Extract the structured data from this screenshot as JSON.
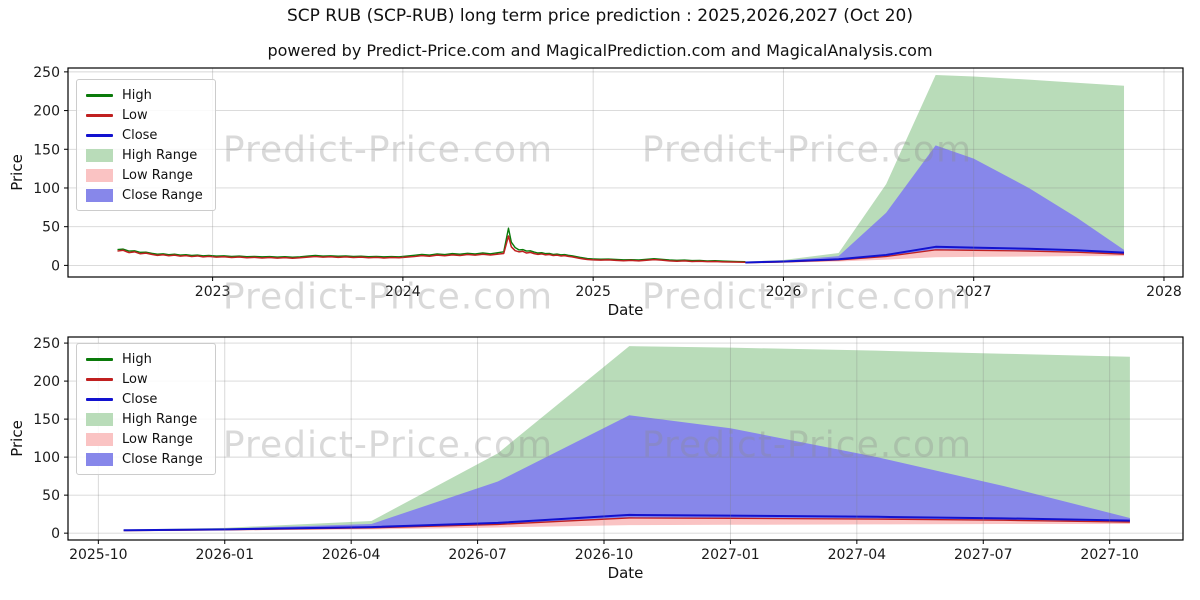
{
  "meta": {
    "title": "SCP RUB (SCP-RUB) long term price prediction : 2025,2026,2027 (Oct 20)",
    "subtitle": "powered by Predict-Price.com and MagicalPrediction.com and MagicalAnalysis.com"
  },
  "watermark": {
    "text": "Predict-Price.com"
  },
  "colors": {
    "high_line": "#0a7a0a",
    "low_line": "#c02020",
    "close_line": "#1212cf",
    "high_range": "#b9dcb9",
    "low_range": "#fac3c3",
    "close_range": "#8787ea",
    "grid": "#808080",
    "spine": "#000000",
    "tick_text": "#1a1a1a"
  },
  "chart_data": [
    {
      "type": "line",
      "xlabel": "Date",
      "ylabel": "Price",
      "x_domain": [
        2022.24,
        2028.1
      ],
      "y_domain": [
        -15,
        255
      ],
      "x_ticks": [
        {
          "v": 2023,
          "label": "2023"
        },
        {
          "v": 2024,
          "label": "2024"
        },
        {
          "v": 2025,
          "label": "2025"
        },
        {
          "v": 2026,
          "label": "2026"
        },
        {
          "v": 2027,
          "label": "2027"
        },
        {
          "v": 2028,
          "label": "2028"
        }
      ],
      "y_ticks": [
        {
          "v": 0,
          "label": "0"
        },
        {
          "v": 50,
          "label": "50"
        },
        {
          "v": 100,
          "label": "100"
        },
        {
          "v": 150,
          "label": "150"
        },
        {
          "v": 200,
          "label": "200"
        },
        {
          "v": 250,
          "label": "250"
        }
      ],
      "legend": [
        {
          "label": "High",
          "swatch": "line",
          "color_key": "high_line"
        },
        {
          "label": "Low",
          "swatch": "line",
          "color_key": "low_line"
        },
        {
          "label": "Close",
          "swatch": "line",
          "color_key": "close_line"
        },
        {
          "label": "High Range",
          "swatch": "patch",
          "color_key": "high_range"
        },
        {
          "label": "Low Range",
          "swatch": "patch",
          "color_key": "low_range"
        },
        {
          "label": "Close Range",
          "swatch": "patch",
          "color_key": "close_range"
        }
      ],
      "history": {
        "note": "triples of [decimal_year, low, high]",
        "points": [
          [
            2022.5,
            18.5,
            20.5
          ],
          [
            2022.53,
            19.5,
            21.0
          ],
          [
            2022.56,
            16.5,
            18.5
          ],
          [
            2022.59,
            17.5,
            18.8
          ],
          [
            2022.62,
            15.0,
            16.8
          ],
          [
            2022.65,
            15.8,
            17.0
          ],
          [
            2022.68,
            14.2,
            15.6
          ],
          [
            2022.71,
            13.0,
            14.5
          ],
          [
            2022.74,
            13.8,
            15.0
          ],
          [
            2022.77,
            12.4,
            13.8
          ],
          [
            2022.8,
            13.2,
            14.4
          ],
          [
            2022.83,
            12.0,
            13.4
          ],
          [
            2022.86,
            12.6,
            13.8
          ],
          [
            2022.89,
            11.4,
            12.8
          ],
          [
            2022.92,
            12.2,
            13.4
          ],
          [
            2022.95,
            11.0,
            12.4
          ],
          [
            2022.98,
            11.6,
            12.8
          ],
          [
            2023.02,
            10.6,
            12.0
          ],
          [
            2023.06,
            11.2,
            12.4
          ],
          [
            2023.1,
            10.2,
            11.6
          ],
          [
            2023.14,
            10.8,
            12.0
          ],
          [
            2023.18,
            9.8,
            11.2
          ],
          [
            2023.22,
            10.4,
            11.6
          ],
          [
            2023.26,
            9.6,
            11.0
          ],
          [
            2023.3,
            10.2,
            11.4
          ],
          [
            2023.34,
            9.4,
            10.8
          ],
          [
            2023.38,
            10.0,
            11.2
          ],
          [
            2023.42,
            9.2,
            10.6
          ],
          [
            2023.46,
            9.8,
            11.0
          ],
          [
            2023.5,
            10.6,
            12.0
          ],
          [
            2023.54,
            11.4,
            12.8
          ],
          [
            2023.58,
            10.6,
            12.0
          ],
          [
            2023.62,
            11.2,
            12.4
          ],
          [
            2023.66,
            10.4,
            11.8
          ],
          [
            2023.7,
            11.0,
            12.2
          ],
          [
            2023.74,
            10.2,
            11.6
          ],
          [
            2023.78,
            10.6,
            11.8
          ],
          [
            2023.82,
            9.8,
            11.2
          ],
          [
            2023.86,
            10.4,
            11.6
          ],
          [
            2023.9,
            9.6,
            11.0
          ],
          [
            2023.94,
            10.2,
            11.4
          ],
          [
            2023.98,
            9.8,
            11.0
          ],
          [
            2024.02,
            10.6,
            12.0
          ],
          [
            2024.06,
            11.4,
            13.0
          ],
          [
            2024.1,
            12.6,
            14.2
          ],
          [
            2024.14,
            11.8,
            13.4
          ],
          [
            2024.18,
            13.2,
            14.8
          ],
          [
            2024.22,
            12.4,
            14.0
          ],
          [
            2024.26,
            13.6,
            15.2
          ],
          [
            2024.3,
            12.8,
            14.4
          ],
          [
            2024.34,
            14.0,
            15.6
          ],
          [
            2024.38,
            13.2,
            14.8
          ],
          [
            2024.42,
            14.4,
            16.0
          ],
          [
            2024.46,
            13.4,
            15.0
          ],
          [
            2024.5,
            14.6,
            16.4
          ],
          [
            2024.53,
            15.4,
            17.5
          ],
          [
            2024.555,
            38.0,
            48.0
          ],
          [
            2024.57,
            24.0,
            30.0
          ],
          [
            2024.59,
            19.0,
            23.0
          ],
          [
            2024.61,
            17.5,
            20.0
          ],
          [
            2024.63,
            18.2,
            20.5
          ],
          [
            2024.65,
            16.0,
            18.5
          ],
          [
            2024.67,
            16.8,
            18.8
          ],
          [
            2024.69,
            15.2,
            17.2
          ],
          [
            2024.71,
            14.2,
            16.0
          ],
          [
            2024.73,
            14.8,
            16.4
          ],
          [
            2024.75,
            13.6,
            15.2
          ],
          [
            2024.77,
            14.0,
            15.4
          ],
          [
            2024.79,
            12.8,
            14.2
          ],
          [
            2024.81,
            13.2,
            14.6
          ],
          [
            2024.83,
            12.2,
            13.6
          ],
          [
            2024.85,
            12.6,
            14.0
          ],
          [
            2024.87,
            11.6,
            13.0
          ],
          [
            2024.89,
            11.0,
            12.4
          ],
          [
            2024.91,
            10.0,
            11.4
          ],
          [
            2024.93,
            9.0,
            10.4
          ],
          [
            2024.95,
            8.2,
            9.6
          ],
          [
            2024.97,
            7.6,
            8.8
          ],
          [
            2025.0,
            7.2,
            8.4
          ],
          [
            2025.04,
            6.8,
            8.0
          ],
          [
            2025.08,
            7.2,
            8.2
          ],
          [
            2025.12,
            6.4,
            7.6
          ],
          [
            2025.16,
            6.0,
            7.2
          ],
          [
            2025.2,
            6.4,
            7.4
          ],
          [
            2025.24,
            5.8,
            7.0
          ],
          [
            2025.28,
            6.6,
            7.8
          ],
          [
            2025.32,
            7.4,
            8.6
          ],
          [
            2025.36,
            6.8,
            7.8
          ],
          [
            2025.4,
            5.8,
            7.0
          ],
          [
            2025.44,
            5.4,
            6.6
          ],
          [
            2025.48,
            5.8,
            6.8
          ],
          [
            2025.52,
            5.0,
            6.2
          ],
          [
            2025.56,
            5.4,
            6.4
          ],
          [
            2025.6,
            4.8,
            5.8
          ],
          [
            2025.64,
            5.0,
            6.0
          ],
          [
            2025.68,
            4.6,
            5.6
          ],
          [
            2025.72,
            4.4,
            5.2
          ],
          [
            2025.76,
            4.2,
            5.0
          ],
          [
            2025.8,
            4.0,
            4.8
          ]
        ]
      },
      "forecast": {
        "x": [
          2025.8,
          2026.0,
          2026.29,
          2026.54,
          2026.8,
          2027.0,
          2027.29,
          2027.54,
          2027.79
        ],
        "high_top": [
          4.8,
          7,
          16,
          105,
          246,
          244,
          240,
          236,
          232
        ],
        "close_top": [
          4.2,
          6,
          12,
          68,
          155,
          138,
          100,
          62,
          20
        ],
        "close": [
          3.8,
          5.0,
          8.0,
          13.5,
          24.0,
          23.0,
          21.5,
          19.5,
          16.5
        ],
        "low": [
          3.4,
          4.4,
          7.0,
          11.5,
          20.0,
          19.5,
          18.5,
          17.0,
          14.5
        ],
        "low_bottom": [
          3.0,
          3.6,
          5.0,
          7.5,
          10.5,
          11.0,
          11.5,
          12.0,
          12.0
        ]
      }
    },
    {
      "type": "line",
      "xlabel": "Date",
      "ylabel": "Price",
      "x_domain": [
        2025.69,
        2027.895
      ],
      "y_domain": [
        -9,
        258
      ],
      "x_ticks": [
        {
          "v": 2025.75,
          "label": "2025-10"
        },
        {
          "v": 2026.0,
          "label": "2026-01"
        },
        {
          "v": 2026.25,
          "label": "2026-04"
        },
        {
          "v": 2026.5,
          "label": "2026-07"
        },
        {
          "v": 2026.75,
          "label": "2026-10"
        },
        {
          "v": 2027.0,
          "label": "2027-01"
        },
        {
          "v": 2027.25,
          "label": "2027-04"
        },
        {
          "v": 2027.5,
          "label": "2027-07"
        },
        {
          "v": 2027.75,
          "label": "2027-10"
        }
      ],
      "y_ticks": [
        {
          "v": 0,
          "label": "0"
        },
        {
          "v": 50,
          "label": "50"
        },
        {
          "v": 100,
          "label": "100"
        },
        {
          "v": 150,
          "label": "150"
        },
        {
          "v": 200,
          "label": "200"
        },
        {
          "v": 250,
          "label": "250"
        }
      ],
      "legend": [
        {
          "label": "High",
          "swatch": "line",
          "color_key": "high_line"
        },
        {
          "label": "Low",
          "swatch": "line",
          "color_key": "low_line"
        },
        {
          "label": "Close",
          "swatch": "line",
          "color_key": "close_line"
        },
        {
          "label": "High Range",
          "swatch": "patch",
          "color_key": "high_range"
        },
        {
          "label": "Low Range",
          "swatch": "patch",
          "color_key": "low_range"
        },
        {
          "label": "Close Range",
          "swatch": "patch",
          "color_key": "close_range"
        }
      ],
      "history": null,
      "forecast": {
        "x": [
          2025.8,
          2026.0,
          2026.29,
          2026.54,
          2026.8,
          2027.0,
          2027.29,
          2027.54,
          2027.79
        ],
        "high_top": [
          4.8,
          7,
          16,
          105,
          246,
          244,
          240,
          236,
          232
        ],
        "close_top": [
          4.2,
          6,
          12,
          68,
          155,
          138,
          100,
          62,
          20
        ],
        "close": [
          3.8,
          5.0,
          8.0,
          13.5,
          24.0,
          23.0,
          21.5,
          19.5,
          16.5
        ],
        "low": [
          3.4,
          4.4,
          7.0,
          11.5,
          20.0,
          19.5,
          18.5,
          17.0,
          14.5
        ],
        "low_bottom": [
          3.0,
          3.6,
          5.0,
          7.5,
          10.5,
          11.0,
          11.5,
          12.0,
          12.0
        ]
      }
    }
  ]
}
